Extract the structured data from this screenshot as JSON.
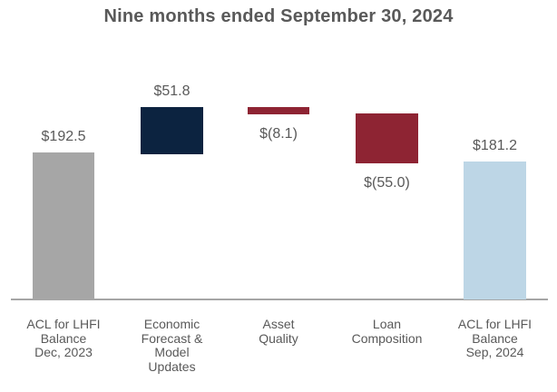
{
  "title": "Nine months ended September 30, 2024",
  "colors": {
    "text": "#595959",
    "axis_line": "#a6a6a6",
    "start_total_bar": "#a6a6a6",
    "increase_bar": "#0c2340",
    "decrease_bar": "#8e2433",
    "end_total_bar": "#bdd6e6"
  },
  "chart_data": {
    "type": "bar",
    "subtype": "waterfall",
    "title": "Nine months ended September 30, 2024",
    "xlabel": "",
    "ylabel": "",
    "ylim": [
      0,
      244.3
    ],
    "grid": false,
    "legend": false,
    "categories": [
      "ACL for LHFI\nBalance\nDec, 2023",
      "Economic\nForecast &\nModel\nUpdates",
      "Asset\nQuality",
      "Loan\nComposition",
      "ACL for LHFI\nBalance\nSep, 2024"
    ],
    "values": [
      192.5,
      51.8,
      -8.1,
      -55.0,
      181.2
    ],
    "value_labels": [
      "$192.5",
      "$51.8",
      "$(8.1)",
      "$(55.0)",
      "$181.2"
    ],
    "bars": [
      {
        "category": "ACL for LHFI\nBalance\nDec, 2023",
        "value": 192.5,
        "value_label": "$192.5",
        "role": "total_start",
        "color": "#a6a6a6",
        "label_position": "above"
      },
      {
        "category": "Economic\nForecast &\nModel\nUpdates",
        "value": 51.8,
        "value_label": "$51.8",
        "role": "increase",
        "color": "#0c2340",
        "label_position": "above"
      },
      {
        "category": "Asset\nQuality",
        "value": -8.1,
        "value_label": "$(8.1)",
        "role": "decrease",
        "color": "#8e2433",
        "label_position": "below"
      },
      {
        "category": "Loan\nComposition",
        "value": -55.0,
        "value_label": "$(55.0)",
        "role": "decrease",
        "color": "#8e2433",
        "label_position": "below"
      },
      {
        "category": "ACL for LHFI\nBalance\nSep, 2024",
        "value": 181.2,
        "value_label": "$181.2",
        "role": "total_end",
        "color": "#bdd6e6",
        "label_position": "above"
      }
    ]
  }
}
